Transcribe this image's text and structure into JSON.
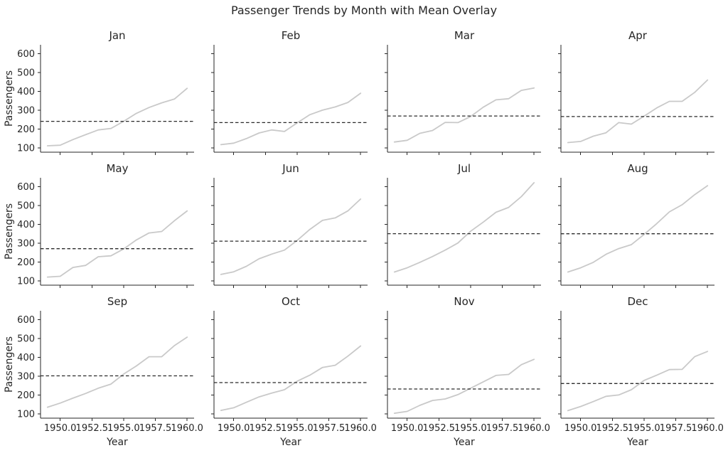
{
  "chart_data": {
    "type": "line",
    "title": "Passenger Trends by Month with Mean Overlay",
    "xlabel": "Year",
    "ylabel": "Passengers",
    "grid": false,
    "legend": "none",
    "x": [
      1949,
      1950,
      1951,
      1952,
      1953,
      1954,
      1955,
      1956,
      1957,
      1958,
      1959,
      1960
    ],
    "xlim": [
      1948.45,
      1960.55
    ],
    "ylim": [
      78,
      648
    ],
    "xtick_values": [
      1950,
      1952.5,
      1955,
      1957.5,
      1960
    ],
    "xtick_labels": [
      "1950.0",
      "1952.5",
      "1955.0",
      "1957.5",
      "1960.0"
    ],
    "ytick_values": [
      100,
      200,
      300,
      400,
      500,
      600
    ],
    "colors": {
      "series": "#c9c9c9",
      "mean_line": "#2b2b2b",
      "axis": "#262626",
      "text": "#262626",
      "background": "#ffffff"
    },
    "mean_line_style": "dashed",
    "facet_grid": {
      "rows": 3,
      "cols": 4
    },
    "facets": [
      {
        "label": "Jan",
        "values": [
          112,
          115,
          145,
          171,
          196,
          204,
          242,
          284,
          315,
          340,
          360,
          417
        ],
        "mean": 241.75
      },
      {
        "label": "Feb",
        "values": [
          118,
          126,
          150,
          180,
          196,
          188,
          233,
          277,
          301,
          318,
          342,
          391
        ],
        "mean": 235.0
      },
      {
        "label": "Mar",
        "values": [
          132,
          141,
          178,
          193,
          236,
          235,
          267,
          317,
          356,
          362,
          406,
          419
        ],
        "mean": 270.17
      },
      {
        "label": "Apr",
        "values": [
          129,
          135,
          163,
          181,
          235,
          227,
          269,
          313,
          348,
          348,
          396,
          461
        ],
        "mean": 267.08
      },
      {
        "label": "May",
        "values": [
          121,
          125,
          172,
          183,
          229,
          234,
          270,
          318,
          355,
          363,
          420,
          472
        ],
        "mean": 271.83
      },
      {
        "label": "Jun",
        "values": [
          135,
          149,
          178,
          218,
          243,
          264,
          315,
          374,
          422,
          435,
          472,
          535
        ],
        "mean": 311.67
      },
      {
        "label": "Jul",
        "values": [
          148,
          170,
          199,
          230,
          264,
          302,
          364,
          413,
          465,
          491,
          548,
          622
        ],
        "mean": 351.33
      },
      {
        "label": "Aug",
        "values": [
          148,
          170,
          199,
          242,
          272,
          293,
          347,
          405,
          467,
          505,
          559,
          606
        ],
        "mean": 351.08
      },
      {
        "label": "Sep",
        "values": [
          136,
          158,
          184,
          209,
          237,
          259,
          312,
          355,
          404,
          404,
          463,
          508
        ],
        "mean": 302.42
      },
      {
        "label": "Oct",
        "values": [
          119,
          133,
          162,
          191,
          211,
          229,
          274,
          306,
          347,
          359,
          407,
          461
        ],
        "mean": 266.58
      },
      {
        "label": "Nov",
        "values": [
          104,
          114,
          146,
          172,
          180,
          203,
          237,
          271,
          305,
          310,
          362,
          390
        ],
        "mean": 232.83
      },
      {
        "label": "Dec",
        "values": [
          118,
          140,
          166,
          194,
          201,
          229,
          278,
          306,
          336,
          337,
          405,
          432
        ],
        "mean": 261.83
      }
    ]
  }
}
